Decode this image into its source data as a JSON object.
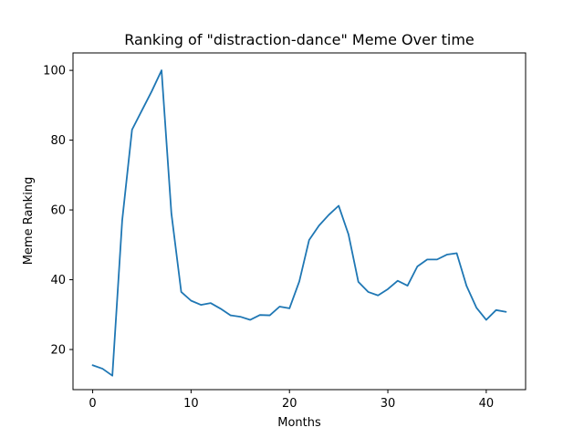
{
  "chart_data": {
    "type": "line",
    "title": "Ranking of \"distraction-dance\" Meme Over time",
    "xlabel": "Months",
    "ylabel": "Meme Ranking",
    "xlim": [
      -2,
      44
    ],
    "ylim": [
      8.5,
      105
    ],
    "xticks": [
      0,
      10,
      20,
      30,
      40
    ],
    "yticks": [
      20,
      40,
      60,
      80,
      100
    ],
    "grid": false,
    "legend": "none",
    "colors": {
      "series": "#1f77b4",
      "axis": "#000000"
    },
    "x": [
      0,
      1,
      2,
      3,
      4,
      5,
      6,
      7,
      8,
      9,
      10,
      11,
      12,
      13,
      14,
      15,
      16,
      17,
      18,
      19,
      20,
      21,
      22,
      23,
      24,
      25,
      26,
      27,
      28,
      29,
      30,
      31,
      32,
      33,
      34,
      35,
      36,
      37,
      38,
      39,
      40,
      41,
      42
    ],
    "series": [
      {
        "values": [
          15.5,
          14.5,
          12.5,
          57,
          83,
          88.5,
          94,
          100,
          59,
          36.5,
          34,
          32.8,
          33.3,
          31.7,
          29.8,
          29.4,
          28.5,
          29.9,
          29.8,
          32.3,
          31.8,
          39.5,
          51.4,
          55.5,
          58.6,
          61.2,
          53,
          39.4,
          36.5,
          35.5,
          37.3,
          39.7,
          38.3,
          43.8,
          45.8,
          45.8,
          47.2,
          47.6,
          38.2,
          32,
          28.5,
          31.3,
          30.8
        ]
      }
    ]
  }
}
